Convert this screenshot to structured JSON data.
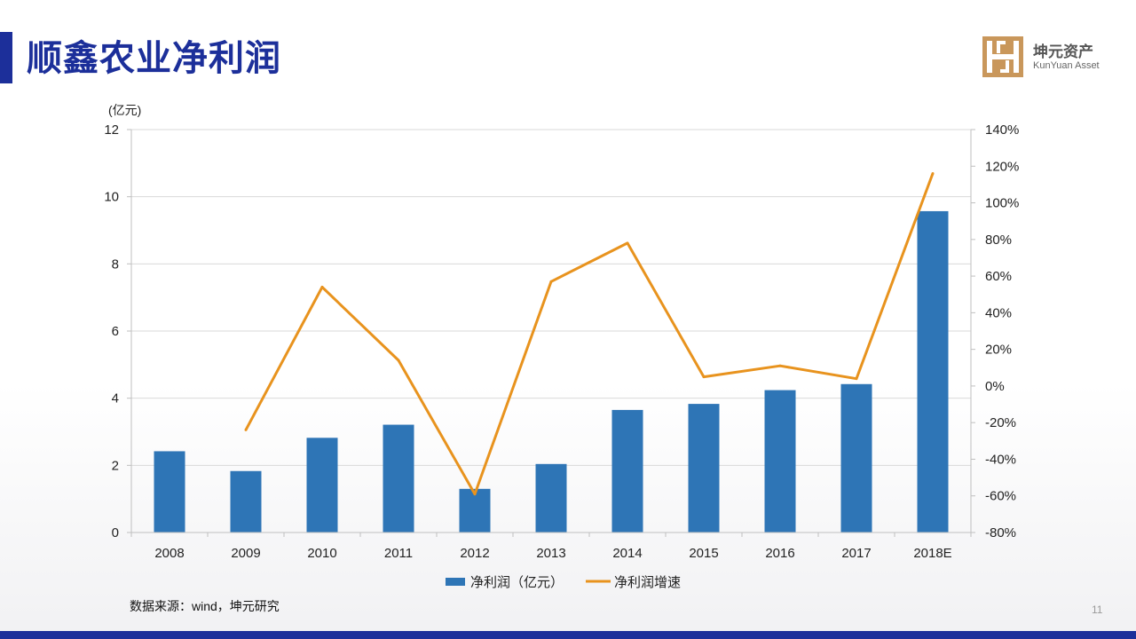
{
  "slide": {
    "title": "顺鑫农业净利润",
    "source": "数据来源：wind，坤元研究",
    "page_number": "11",
    "brand": {
      "name": "坤元资产",
      "subtitle": "KunYuan Asset",
      "logo_icon": "kunyuan-logo-icon"
    }
  },
  "colors": {
    "accent": "#1c2f9a",
    "bar": "#2e75b6",
    "line": "#e8931e",
    "grid": "#d9d9d9"
  },
  "chart_data": {
    "type": "bar",
    "title": "",
    "categories": [
      "2008",
      "2009",
      "2010",
      "2011",
      "2012",
      "2013",
      "2014",
      "2015",
      "2016",
      "2017",
      "2018E"
    ],
    "y_unit_label": "(亿元)",
    "ylim": [
      0,
      12
    ],
    "y_ticks": [
      "0",
      "2",
      "4",
      "6",
      "8",
      "10",
      "12"
    ],
    "y2lim": [
      -80,
      140
    ],
    "y2_ticks": [
      "-80%",
      "-60%",
      "-40%",
      "-20%",
      "0%",
      "20%",
      "40%",
      "60%",
      "80%",
      "100%",
      "120%",
      "140%"
    ],
    "grid": true,
    "legend_position": "bottom",
    "series": [
      {
        "name": "净利润（亿元）",
        "type": "bar",
        "axis": "left",
        "values": [
          2.42,
          1.83,
          2.82,
          3.21,
          1.3,
          2.04,
          3.65,
          3.83,
          4.24,
          4.42,
          9.57
        ]
      },
      {
        "name": "净利润增速",
        "type": "line",
        "axis": "right",
        "values": [
          null,
          -24,
          54,
          14,
          -59,
          57,
          78,
          5,
          11,
          4,
          116
        ]
      }
    ]
  }
}
